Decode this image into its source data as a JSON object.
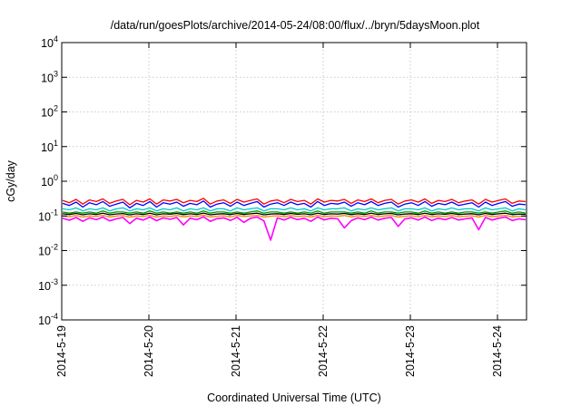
{
  "chart_data": {
    "type": "line",
    "title": "/data/run/goesPlots/archive/2014-05-24/08:00/flux/../bryn/5daysMoon.plot",
    "xlabel": "Coordinated Universal Time (UTC)",
    "ylabel": "cGy/day",
    "y_scale": "log",
    "ylim": [
      0.0001,
      10000
    ],
    "y_ticks": [
      {
        "value": 0.0001,
        "base": "10",
        "exp": "-4"
      },
      {
        "value": 0.001,
        "base": "10",
        "exp": "-3"
      },
      {
        "value": 0.01,
        "base": "10",
        "exp": "-2"
      },
      {
        "value": 0.1,
        "base": "10",
        "exp": "-1"
      },
      {
        "value": 1,
        "base": "10",
        "exp": "0"
      },
      {
        "value": 10,
        "base": "10",
        "exp": "1"
      },
      {
        "value": 100,
        "base": "10",
        "exp": "2"
      },
      {
        "value": 1000,
        "base": "10",
        "exp": "3"
      },
      {
        "value": 10000,
        "base": "10",
        "exp": "4"
      }
    ],
    "xlim": [
      "2014-05-19 00:00",
      "2014-05-24 08:00"
    ],
    "x_ticks": [
      "2014-5-19",
      "2014-5-20",
      "2014-5-21",
      "2014-5-22",
      "2014-5-23",
      "2014-5-24"
    ],
    "grid": true,
    "series": [
      {
        "color": "#ff0000",
        "values": [
          0.28,
          0.24,
          0.3,
          0.22,
          0.29,
          0.26,
          0.31,
          0.23,
          0.27,
          0.3,
          0.21,
          0.28,
          0.25,
          0.31,
          0.22,
          0.29,
          0.27,
          0.3,
          0.24,
          0.28,
          0.26,
          0.32,
          0.22,
          0.27,
          0.29,
          0.23,
          0.3,
          0.25,
          0.28,
          0.31,
          0.22,
          0.27,
          0.29,
          0.24,
          0.3,
          0.26,
          0.28,
          0.22,
          0.31,
          0.25,
          0.28,
          0.27,
          0.3,
          0.23,
          0.29,
          0.26,
          0.31,
          0.24,
          0.28,
          0.3,
          0.22,
          0.27,
          0.29,
          0.25,
          0.31,
          0.23,
          0.28,
          0.26,
          0.3,
          0.24,
          0.27,
          0.29,
          0.22,
          0.3,
          0.25,
          0.28,
          0.31,
          0.23,
          0.27,
          0.26
        ]
      },
      {
        "color": "#0000ff",
        "values": [
          0.23,
          0.2,
          0.25,
          0.18,
          0.24,
          0.21,
          0.26,
          0.19,
          0.22,
          0.25,
          0.17,
          0.23,
          0.2,
          0.26,
          0.18,
          0.24,
          0.22,
          0.25,
          0.19,
          0.23,
          0.21,
          0.27,
          0.18,
          0.22,
          0.24,
          0.19,
          0.25,
          0.2,
          0.23,
          0.26,
          0.18,
          0.22,
          0.24,
          0.2,
          0.25,
          0.21,
          0.23,
          0.18,
          0.26,
          0.2,
          0.23,
          0.22,
          0.25,
          0.19,
          0.24,
          0.21,
          0.26,
          0.2,
          0.23,
          0.25,
          0.18,
          0.22,
          0.24,
          0.2,
          0.26,
          0.19,
          0.23,
          0.21,
          0.25,
          0.2,
          0.22,
          0.24,
          0.18,
          0.25,
          0.2,
          0.23,
          0.26,
          0.19,
          0.22,
          0.21
        ]
      },
      {
        "color": "#00c8c8",
        "values": [
          0.16,
          0.15,
          0.17,
          0.14,
          0.16,
          0.15,
          0.17,
          0.14,
          0.16,
          0.17,
          0.14,
          0.16,
          0.15,
          0.17,
          0.14,
          0.16,
          0.15,
          0.17,
          0.14,
          0.16,
          0.15,
          0.17,
          0.14,
          0.16,
          0.16,
          0.14,
          0.17,
          0.15,
          0.16,
          0.17,
          0.14,
          0.16,
          0.16,
          0.15,
          0.17,
          0.15,
          0.16,
          0.14,
          0.17,
          0.15,
          0.16,
          0.16,
          0.17,
          0.14,
          0.16,
          0.15,
          0.17,
          0.15,
          0.16,
          0.17,
          0.14,
          0.16,
          0.16,
          0.15,
          0.17,
          0.14,
          0.16,
          0.15,
          0.17,
          0.15,
          0.16,
          0.16,
          0.14,
          0.17,
          0.15,
          0.16,
          0.17,
          0.14,
          0.16,
          0.15
        ]
      },
      {
        "color": "#00a000",
        "values": [
          0.13,
          0.12,
          0.13,
          0.12,
          0.13,
          0.12,
          0.14,
          0.12,
          0.13,
          0.13,
          0.12,
          0.13,
          0.12,
          0.14,
          0.12,
          0.13,
          0.12,
          0.13,
          0.12,
          0.13,
          0.12,
          0.14,
          0.12,
          0.13,
          0.13,
          0.12,
          0.13,
          0.12,
          0.13,
          0.14,
          0.12,
          0.13,
          0.13,
          0.12,
          0.13,
          0.12,
          0.13,
          0.12,
          0.14,
          0.12,
          0.13,
          0.13,
          0.13,
          0.12,
          0.13,
          0.12,
          0.14,
          0.12,
          0.13,
          0.13,
          0.12,
          0.13,
          0.13,
          0.12,
          0.14,
          0.12,
          0.13,
          0.12,
          0.13,
          0.12,
          0.13,
          0.13,
          0.12,
          0.13,
          0.12,
          0.13,
          0.14,
          0.12,
          0.13,
          0.12
        ]
      },
      {
        "color": "#000000",
        "values": [
          0.115,
          0.11,
          0.118,
          0.108,
          0.115,
          0.11,
          0.12,
          0.108,
          0.114,
          0.117,
          0.107,
          0.115,
          0.11,
          0.12,
          0.108,
          0.115,
          0.112,
          0.118,
          0.109,
          0.115,
          0.11,
          0.121,
          0.108,
          0.113,
          0.116,
          0.109,
          0.118,
          0.11,
          0.115,
          0.12,
          0.108,
          0.113,
          0.116,
          0.11,
          0.118,
          0.111,
          0.115,
          0.108,
          0.12,
          0.11,
          0.115,
          0.113,
          0.118,
          0.109,
          0.116,
          0.11,
          0.12,
          0.11,
          0.115,
          0.118,
          0.108,
          0.113,
          0.116,
          0.11,
          0.12,
          0.109,
          0.115,
          0.111,
          0.118,
          0.11,
          0.113,
          0.116,
          0.108,
          0.118,
          0.11,
          0.115,
          0.12,
          0.109,
          0.113,
          0.111
        ]
      },
      {
        "color": "#ff8000",
        "values": [
          0.1,
          0.095,
          0.103,
          0.093,
          0.1,
          0.096,
          0.104,
          0.093,
          0.099,
          0.102,
          0.092,
          0.1,
          0.096,
          0.104,
          0.093,
          0.1,
          0.097,
          0.103,
          0.094,
          0.1,
          0.096,
          0.105,
          0.093,
          0.098,
          0.101,
          0.094,
          0.103,
          0.096,
          0.1,
          0.104,
          0.093,
          0.098,
          0.101,
          0.095,
          0.103,
          0.096,
          0.1,
          0.093,
          0.104,
          0.095,
          0.1,
          0.098,
          0.103,
          0.094,
          0.101,
          0.096,
          0.104,
          0.095,
          0.1,
          0.103,
          0.093,
          0.098,
          0.101,
          0.095,
          0.104,
          0.094,
          0.1,
          0.096,
          0.103,
          0.095,
          0.098,
          0.101,
          0.093,
          0.103,
          0.095,
          0.1,
          0.104,
          0.094,
          0.098,
          0.096
        ]
      },
      {
        "color": "#ff00ff",
        "values": [
          0.085,
          0.075,
          0.09,
          0.07,
          0.088,
          0.078,
          0.092,
          0.072,
          0.082,
          0.09,
          0.06,
          0.086,
          0.076,
          0.093,
          0.073,
          0.088,
          0.08,
          0.09,
          0.055,
          0.086,
          0.078,
          0.094,
          0.07,
          0.083,
          0.088,
          0.074,
          0.091,
          0.065,
          0.086,
          0.093,
          0.072,
          0.02,
          0.088,
          0.076,
          0.091,
          0.078,
          0.086,
          0.07,
          0.093,
          0.077,
          0.086,
          0.082,
          0.045,
          0.073,
          0.088,
          0.078,
          0.093,
          0.076,
          0.086,
          0.09,
          0.05,
          0.082,
          0.088,
          0.076,
          0.093,
          0.074,
          0.086,
          0.078,
          0.09,
          0.076,
          0.082,
          0.088,
          0.04,
          0.09,
          0.076,
          0.086,
          0.093,
          0.074,
          0.082,
          0.078
        ]
      }
    ]
  }
}
